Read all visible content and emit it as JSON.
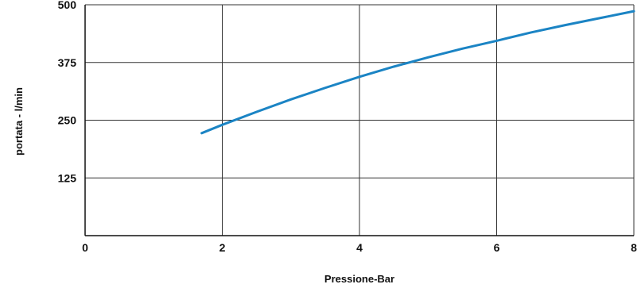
{
  "chart_data": {
    "type": "line",
    "title": "",
    "xlabel": "Pressione-Bar",
    "ylabel": "portata - l/min",
    "xlim": [
      0,
      8
    ],
    "ylim": [
      0,
      500
    ],
    "x_ticks": [
      0,
      2,
      4,
      6,
      8
    ],
    "y_ticks": [
      125,
      250,
      375,
      500
    ],
    "grid": true,
    "legend": "none",
    "series": [
      {
        "color": "#1b84c4",
        "x": [
          1.7,
          2.0,
          2.5,
          3.0,
          3.5,
          4.0,
          4.5,
          5.0,
          5.5,
          6.0,
          6.5,
          7.0,
          7.5,
          8.0
        ],
        "y": [
          222,
          240,
          268,
          295,
          320,
          344,
          366,
          386,
          405,
          422,
          440,
          456,
          471,
          486
        ]
      }
    ]
  },
  "colors": {
    "grid": "#333333",
    "axis": "#111111",
    "line": "#1b84c4"
  }
}
